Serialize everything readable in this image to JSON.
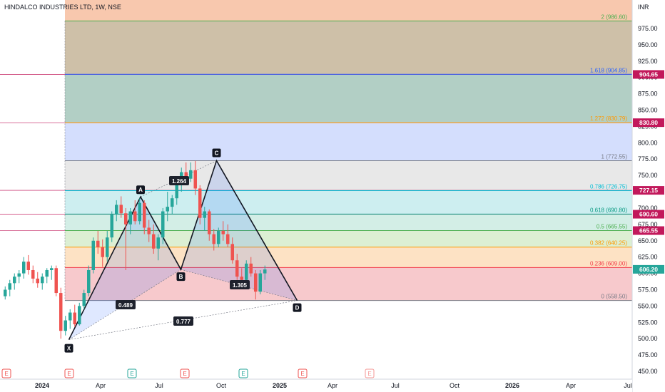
{
  "header": {
    "title": "HINDALCO INDUSTRIES LTD, 1W, NSE",
    "currency": "INR"
  },
  "colors": {
    "up": "#26a69a",
    "down": "#ef5350",
    "badge": "#c2185b",
    "pattern_line": "#131722",
    "pattern_fill": "#2962ff"
  },
  "chart_data": {
    "type": "candlestick",
    "title": "HINDALCO INDUSTRIES LTD, 1W, NSE",
    "y_axis": {
      "unit": "INR",
      "range": [
        440,
        1005
      ],
      "ticks": [
        "450.00",
        "475.00",
        "500.00",
        "525.00",
        "550.00",
        "575.00",
        "600.00",
        "625.00",
        "650.00",
        "675.00",
        "700.00",
        "725.00",
        "750.00",
        "775.00",
        "800.00",
        "825.00",
        "850.00",
        "875.00",
        "900.00",
        "925.00",
        "950.00",
        "975.00"
      ],
      "tick_values": [
        450,
        475,
        500,
        525,
        550,
        575,
        600,
        625,
        650,
        675,
        700,
        725,
        750,
        775,
        800,
        825,
        850,
        875,
        900,
        925,
        950,
        975
      ],
      "position": "right"
    },
    "x_axis": {
      "labels": [
        {
          "text": "2024",
          "bold": true
        },
        {
          "text": "Apr",
          "bold": false
        },
        {
          "text": "Jul",
          "bold": false
        },
        {
          "text": "Oct",
          "bold": false
        },
        {
          "text": "2025",
          "bold": true
        },
        {
          "text": "Apr",
          "bold": false
        },
        {
          "text": "Jul",
          "bold": false
        },
        {
          "text": "Oct",
          "bold": false
        },
        {
          "text": "2026",
          "bold": true
        },
        {
          "text": "Apr",
          "bold": false
        },
        {
          "text": "Jul",
          "bold": false
        }
      ],
      "label_bars": [
        0,
        13,
        26,
        39,
        52,
        65,
        78,
        91,
        104,
        117,
        130
      ]
    },
    "candles": [
      [
        565,
        580,
        560,
        575
      ],
      [
        575,
        590,
        565,
        585
      ],
      [
        585,
        600,
        575,
        595
      ],
      [
        595,
        605,
        585,
        600
      ],
      [
        600,
        625,
        592,
        618
      ],
      [
        618,
        628,
        598,
        605
      ],
      [
        605,
        612,
        585,
        592
      ],
      [
        592,
        602,
        578,
        585
      ],
      [
        585,
        600,
        575,
        595
      ],
      [
        595,
        608,
        585,
        605
      ],
      [
        605,
        612,
        590,
        608
      ],
      [
        608,
        612,
        565,
        570
      ],
      [
        570,
        578,
        500,
        512
      ],
      [
        512,
        535,
        505,
        528
      ],
      [
        528,
        545,
        515,
        540
      ],
      [
        540,
        552,
        518,
        522
      ],
      [
        522,
        555,
        520,
        550
      ],
      [
        550,
        575,
        545,
        570
      ],
      [
        570,
        612,
        565,
        605
      ],
      [
        605,
        655,
        600,
        650
      ],
      [
        650,
        665,
        630,
        640
      ],
      [
        640,
        652,
        610,
        625
      ],
      [
        625,
        665,
        618,
        655
      ],
      [
        655,
        695,
        648,
        690
      ],
      [
        690,
        712,
        680,
        705
      ],
      [
        705,
        718,
        685,
        692
      ],
      [
        692,
        700,
        605,
        675
      ],
      [
        675,
        700,
        660,
        695
      ],
      [
        695,
        712,
        675,
        680
      ],
      [
        680,
        715,
        675,
        708
      ],
      [
        708,
        712,
        660,
        670
      ],
      [
        670,
        682,
        648,
        660
      ],
      [
        660,
        675,
        630,
        638
      ],
      [
        638,
        660,
        620,
        655
      ],
      [
        655,
        700,
        645,
        695
      ],
      [
        695,
        725,
        680,
        702
      ],
      [
        702,
        720,
        690,
        715
      ],
      [
        715,
        742,
        705,
        735
      ],
      [
        735,
        762,
        725,
        755
      ],
      [
        755,
        770,
        735,
        745
      ],
      [
        745,
        770,
        740,
        758
      ],
      [
        758,
        772,
        720,
        730
      ],
      [
        730,
        735,
        675,
        685
      ],
      [
        685,
        702,
        665,
        695
      ],
      [
        695,
        698,
        650,
        660
      ],
      [
        660,
        668,
        635,
        645
      ],
      [
        645,
        670,
        640,
        665
      ],
      [
        665,
        680,
        650,
        660
      ],
      [
        660,
        675,
        640,
        645
      ],
      [
        645,
        655,
        615,
        620
      ],
      [
        620,
        630,
        590,
        595
      ],
      [
        595,
        608,
        580,
        590
      ],
      [
        590,
        620,
        585,
        615
      ],
      [
        615,
        625,
        595,
        600
      ],
      [
        600,
        605,
        560,
        572
      ],
      [
        572,
        605,
        568,
        600
      ],
      [
        600,
        612,
        590,
        606
      ]
    ],
    "pattern": {
      "name": "XABCD",
      "points": [
        {
          "label": "X",
          "price": 498.5
        },
        {
          "label": "A",
          "price": 717.2
        },
        {
          "label": "B",
          "price": 606.0
        },
        {
          "label": "C",
          "price": 772.55
        },
        {
          "label": "D",
          "price": 558.5
        }
      ],
      "ratios": [
        "1.264",
        "0.489",
        "1.305",
        "0.777"
      ]
    },
    "fib_levels": [
      {
        "ratio": "0",
        "price": 558.5,
        "label": "0 (558.50)",
        "color": "#787b86",
        "fill": "#f7c9cc"
      },
      {
        "ratio": "0.236",
        "price": 609.0,
        "label": "0.236 (609.00)",
        "color": "#f23645",
        "fill": "#fde2c4"
      },
      {
        "ratio": "0.382",
        "price": 640.25,
        "label": "0.382 (640.25)",
        "color": "#ff9800",
        "fill": "#dcefd3"
      },
      {
        "ratio": "0.5",
        "price": 665.55,
        "label": "0.5 (665.55)",
        "color": "#4caf50",
        "fill": "#d3eee6"
      },
      {
        "ratio": "0.618",
        "price": 690.8,
        "label": "0.618 (690.80)",
        "color": "#089981",
        "fill": "#cdeef0"
      },
      {
        "ratio": "0.786",
        "price": 726.75,
        "label": "0.786 (726.75)",
        "color": "#00bcd4",
        "fill": "#e8e8e8"
      },
      {
        "ratio": "1",
        "price": 772.55,
        "label": "1 (772.55)",
        "color": "#787b86",
        "fill": "#d4defd"
      },
      {
        "ratio": "1.272",
        "price": 830.79,
        "label": "1.272 (830.79)",
        "color": "#ff9800",
        "fill": "#b2cfc5"
      },
      {
        "ratio": "1.618",
        "price": 904.85,
        "label": "1.618 (904.85)",
        "color": "#2962ff",
        "fill": "#cec0a8"
      },
      {
        "ratio": "2",
        "price": 986.6,
        "label": "2 (986.60)",
        "color": "#4caf50",
        "fill": "#f8c8ae"
      }
    ],
    "price_badges": [
      {
        "price": 904.65,
        "label": "904.65",
        "type": "alert"
      },
      {
        "price": 830.8,
        "label": "830.80",
        "type": "alert"
      },
      {
        "price": 727.15,
        "label": "727.15",
        "type": "alert"
      },
      {
        "price": 690.6,
        "label": "690.60",
        "type": "alert"
      },
      {
        "price": 665.55,
        "label": "665.55",
        "type": "alert"
      },
      {
        "price": 606.2,
        "label": "606.20",
        "type": "last"
      }
    ],
    "events": [
      {
        "bar": 0,
        "label": "E",
        "color": "#ef5350"
      },
      {
        "bar": 9,
        "label": "E",
        "color": "#ef5350"
      },
      {
        "bar": 22,
        "label": "E",
        "color": "#26a69a"
      },
      {
        "bar": 35,
        "label": "E",
        "color": "#ef5350"
      },
      {
        "bar": 48,
        "label": "E",
        "color": "#26a69a"
      },
      {
        "bar": 61,
        "label": "E",
        "color": "#ef5350"
      },
      {
        "bar": 74,
        "label": "E",
        "color": "#ef5350"
      }
    ]
  }
}
